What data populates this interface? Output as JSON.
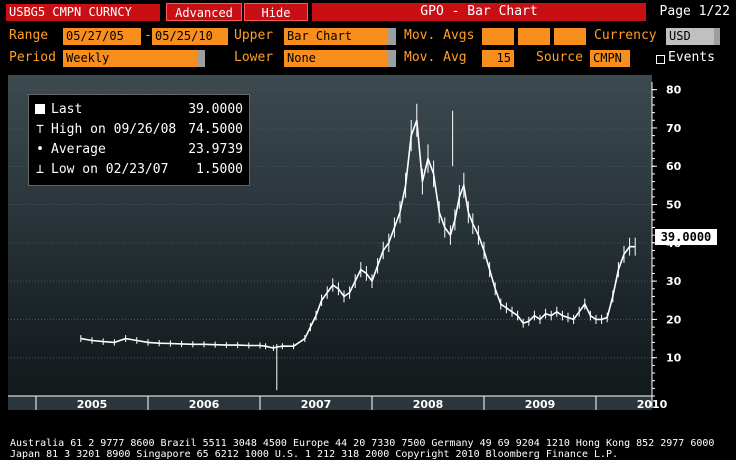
{
  "header": {
    "ticker": "USBG5 CMPN CURNCY",
    "advanced_label": "Advanced",
    "hide_label": "Hide",
    "title": "GPO - Bar Chart",
    "page": "Page 1/22"
  },
  "controls": {
    "range_label": "Range",
    "range_start": "05/27/05",
    "range_sep": "-",
    "range_end": "05/25/10",
    "upper_label": "Upper",
    "upper_value": "Bar Chart",
    "mov_avgs_label": "Mov. Avgs",
    "currency_label": "Currency",
    "currency_value": "USD",
    "period_label": "Period",
    "period_value": "Weekly",
    "lower_label": "Lower",
    "lower_value": "None",
    "mov_avg_label": "Mov. Avg",
    "mov_avg_value": "15",
    "source_label": "Source",
    "source_value": "CMPN",
    "events_label": "Events"
  },
  "legend": {
    "last_label": "Last",
    "last_value": "39.0000",
    "high_label": "High on 09/26/08",
    "high_value": "74.5000",
    "avg_label": "Average",
    "avg_value": "23.9739",
    "low_label": "Low on 02/23/07",
    "low_value": "1.5000"
  },
  "last_marker": "39.0000",
  "chart_data": {
    "type": "line",
    "x_labels": [
      "2005",
      "2006",
      "2007",
      "2008",
      "2009",
      "2010"
    ],
    "y_ticks": [
      10,
      20,
      30,
      40,
      50,
      60,
      70,
      80
    ],
    "ylim": [
      0,
      82
    ],
    "series": [
      {
        "x": [
          2005.4,
          2005.5,
          2005.6,
          2005.7,
          2005.8,
          2005.9,
          2006.0,
          2006.1,
          2006.2,
          2006.3,
          2006.4,
          2006.5,
          2006.6,
          2006.7,
          2006.8,
          2006.9,
          2007.0,
          2007.05,
          2007.12,
          2007.15,
          2007.2,
          2007.3,
          2007.4,
          2007.45,
          2007.5,
          2007.55,
          2007.6,
          2007.65,
          2007.7,
          2007.75,
          2007.8,
          2007.85,
          2007.9,
          2007.95,
          2008.0,
          2008.05,
          2008.1,
          2008.15,
          2008.2,
          2008.25,
          2008.3,
          2008.35,
          2008.4,
          2008.45,
          2008.5,
          2008.55,
          2008.6,
          2008.65,
          2008.7,
          2008.74,
          2008.78,
          2008.82,
          2008.86,
          2008.9,
          2008.95,
          2009.0,
          2009.05,
          2009.1,
          2009.15,
          2009.2,
          2009.25,
          2009.3,
          2009.35,
          2009.4,
          2009.45,
          2009.5,
          2009.55,
          2009.6,
          2009.65,
          2009.7,
          2009.75,
          2009.8,
          2009.85,
          2009.9,
          2009.95,
          2010.0,
          2010.05,
          2010.1,
          2010.15,
          2010.2,
          2010.25,
          2010.3,
          2010.35
        ],
        "y": [
          15.0,
          14.5,
          14.2,
          14.0,
          15.0,
          14.5,
          14.0,
          13.8,
          13.7,
          13.6,
          13.5,
          13.5,
          13.4,
          13.3,
          13.3,
          13.2,
          13.2,
          13.0,
          12.5,
          12.8,
          13.0,
          13.0,
          15.0,
          18.0,
          21.0,
          25.0,
          27.0,
          29.0,
          28.0,
          26.0,
          27.0,
          30.0,
          33.0,
          32.0,
          30.0,
          34.0,
          38.0,
          40.0,
          44.0,
          48.0,
          55.0,
          68.0,
          72.0,
          56.0,
          62.0,
          58.0,
          48.0,
          44.0,
          42.0,
          46.0,
          52.0,
          55.0,
          48.0,
          45.0,
          42.0,
          38.0,
          33.0,
          28.0,
          24.0,
          23.0,
          22.0,
          21.0,
          19.0,
          19.5,
          21.0,
          20.0,
          21.5,
          21.0,
          22.0,
          21.0,
          20.5,
          20.0,
          22.0,
          24.0,
          21.0,
          20.0,
          20.0,
          20.5,
          26.0,
          33.0,
          37.0,
          39.0,
          39.0
        ]
      }
    ],
    "last_value": 39.0
  },
  "footer": {
    "line1": "Australia 61 2 9777 8600 Brazil 5511 3048 4500 Europe 44 20 7330 7500 Germany 49 69 9204 1210 Hong Kong 852 2977 6000",
    "line2": "Japan 81 3 3201 8900          Singapore 65 6212 1000        U.S. 1 212 318 2000          Copyright 2010 Bloomberg Finance L.P."
  },
  "colors": {
    "accent_red": "#c81014",
    "field_orange": "#f78e1e",
    "label_orange": "#ffa028"
  }
}
